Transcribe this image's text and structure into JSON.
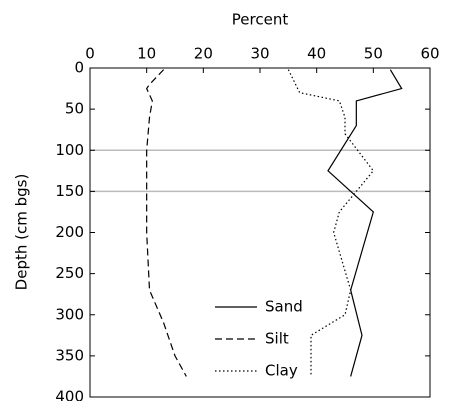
{
  "chart_data": {
    "type": "line",
    "x_label": "Percent",
    "y_label": "Depth (cm bgs)",
    "xlim": [
      0,
      60
    ],
    "xticks": [
      0,
      10,
      20,
      30,
      40,
      50,
      60
    ],
    "ylim": [
      0,
      400
    ],
    "yticks": [
      0,
      50,
      100,
      150,
      200,
      250,
      300,
      350,
      400
    ],
    "x_axis_position": "top",
    "y_inverted": true,
    "hlines": [
      100,
      150
    ],
    "hline_color": "#bbbbbb",
    "legend": "lower center",
    "series": [
      {
        "name": "Sand",
        "color": "#000000",
        "dash": "solid",
        "depth": [
          2,
          25,
          40,
          70,
          125,
          175,
          270,
          325,
          375
        ],
        "percent": [
          53,
          55,
          47,
          47,
          42,
          50,
          46,
          48,
          46
        ]
      },
      {
        "name": "Silt",
        "color": "#000000",
        "dash": "dashed",
        "depth": [
          2,
          20,
          25,
          40,
          60,
          100,
          150,
          200,
          270,
          310,
          350,
          375
        ],
        "percent": [
          13,
          10.5,
          10,
          11,
          10.5,
          10,
          10,
          10,
          10.5,
          13,
          15,
          17
        ]
      },
      {
        "name": "Clay",
        "color": "#000000",
        "dash": "dotted",
        "depth": [
          2,
          30,
          40,
          60,
          80,
          125,
          150,
          175,
          200,
          270,
          300,
          325,
          375
        ],
        "percent": [
          35,
          37,
          44,
          45,
          45,
          50,
          47,
          44,
          43,
          46,
          45,
          39,
          39
        ]
      }
    ]
  }
}
